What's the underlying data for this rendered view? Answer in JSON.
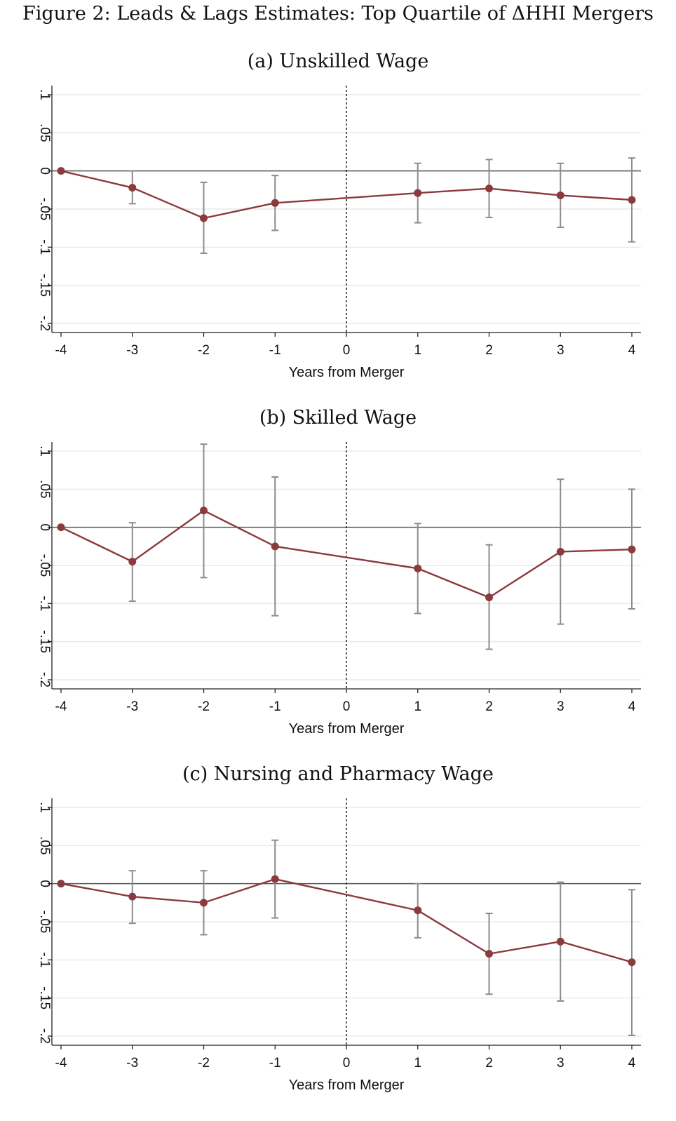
{
  "figure": {
    "title": "Figure 2: Leads & Lags Estimates: Top Quartile of ΔHHI Mergers"
  },
  "chart_data": [
    {
      "type": "line",
      "title": "(a) Unskilled Wage",
      "xlabel": "Years from Merger",
      "ylabel": "",
      "x": [
        -4,
        -3,
        -2,
        -1,
        1,
        2,
        3,
        4
      ],
      "series": [
        {
          "values": [
            0,
            -0.022,
            -0.062,
            -0.042,
            -0.029,
            -0.023,
            -0.032,
            -0.038
          ],
          "ci_low": [
            0,
            -0.043,
            -0.108,
            -0.078,
            -0.068,
            -0.061,
            -0.074,
            -0.093
          ],
          "ci_high": [
            0,
            0,
            -0.015,
            -0.006,
            0.01,
            0.015,
            0.01,
            0.017
          ],
          "color": "#8b3a3e"
        }
      ],
      "xticks": [
        "-4",
        "-3",
        "-2",
        "-1",
        "0",
        "1",
        "2",
        "3",
        "4"
      ],
      "yticks": [
        "-.2",
        "-.15",
        "-.1",
        "-.05",
        "0",
        ".05",
        ".1"
      ],
      "ylim": [
        -0.2,
        0.1
      ],
      "xlim": [
        -4,
        4
      ],
      "reference_lines": {
        "horizontal": 0,
        "vertical": 0
      },
      "grid": true,
      "error_bar_color": "#8c8c8c"
    },
    {
      "type": "line",
      "title": "(b) Skilled Wage",
      "xlabel": "Years from Merger",
      "ylabel": "",
      "x": [
        -4,
        -3,
        -2,
        -1,
        1,
        2,
        3,
        4
      ],
      "series": [
        {
          "values": [
            0,
            -0.045,
            0.022,
            -0.025,
            -0.054,
            -0.092,
            -0.032,
            -0.029
          ],
          "ci_low": [
            0,
            -0.097,
            -0.066,
            -0.116,
            -0.113,
            -0.16,
            -0.127,
            -0.107
          ],
          "ci_high": [
            0,
            0.006,
            0.109,
            0.066,
            0.005,
            -0.023,
            0.063,
            0.05
          ],
          "color": "#8b3a3e"
        }
      ],
      "xticks": [
        "-4",
        "-3",
        "-2",
        "-1",
        "0",
        "1",
        "2",
        "3",
        "4"
      ],
      "yticks": [
        "-.2",
        "-.15",
        "-.1",
        "-.05",
        "0",
        ".05",
        ".1"
      ],
      "ylim": [
        -0.2,
        0.1
      ],
      "xlim": [
        -4,
        4
      ],
      "reference_lines": {
        "horizontal": 0,
        "vertical": 0
      },
      "grid": true,
      "error_bar_color": "#8c8c8c"
    },
    {
      "type": "line",
      "title": "(c) Nursing and Pharmacy Wage",
      "xlabel": "Years from Merger",
      "ylabel": "",
      "x": [
        -4,
        -3,
        -2,
        -1,
        1,
        2,
        3,
        4
      ],
      "series": [
        {
          "values": [
            0,
            -0.017,
            -0.025,
            0.006,
            -0.035,
            -0.092,
            -0.076,
            -0.103
          ],
          "ci_low": [
            0,
            -0.052,
            -0.067,
            -0.045,
            -0.071,
            -0.145,
            -0.154,
            -0.199
          ],
          "ci_high": [
            0,
            0.017,
            0.017,
            0.057,
            0,
            -0.039,
            0.002,
            -0.008
          ],
          "color": "#8b3a3e"
        }
      ],
      "xticks": [
        "-4",
        "-3",
        "-2",
        "-1",
        "0",
        "1",
        "2",
        "3",
        "4"
      ],
      "yticks": [
        "-.2",
        "-.15",
        "-.1",
        "-.05",
        "0",
        ".05",
        ".1"
      ],
      "ylim": [
        -0.2,
        0.1
      ],
      "xlim": [
        -4,
        4
      ],
      "reference_lines": {
        "horizontal": 0,
        "vertical": 0
      },
      "grid": true,
      "error_bar_color": "#8c8c8c"
    }
  ]
}
